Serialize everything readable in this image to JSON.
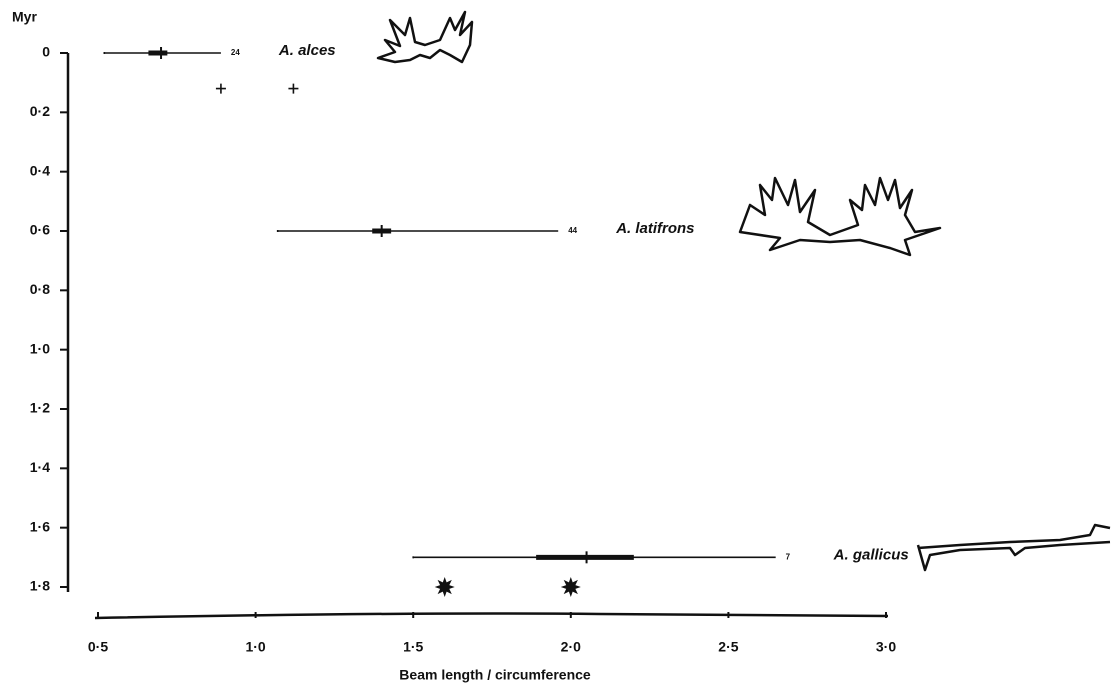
{
  "chart_data": {
    "type": "range",
    "ylabel": "Myr",
    "xlabel": "Beam length / circumference",
    "xlim": [
      0.5,
      3.0
    ],
    "xticks": [
      {
        "value": 0.5,
        "label": "0·5"
      },
      {
        "value": 1.0,
        "label": "1·0"
      },
      {
        "value": 1.5,
        "label": "1·5"
      },
      {
        "value": 2.0,
        "label": "2·0"
      },
      {
        "value": 2.5,
        "label": "2·5"
      },
      {
        "value": 3.0,
        "label": "3·0"
      }
    ],
    "ylim": [
      0,
      1.8
    ],
    "yticks": [
      0,
      {
        "value": 0.2,
        "label": "0·2"
      },
      {
        "value": 0.4,
        "label": "0·4"
      },
      {
        "value": 0.6,
        "label": "0·6"
      },
      {
        "value": 0.8,
        "label": "0·8"
      },
      {
        "value": 1.0,
        "label": "1·0"
      },
      {
        "value": 1.2,
        "label": "1·2"
      },
      {
        "value": 1.4,
        "label": "1·4"
      },
      {
        "value": 1.6,
        "label": "1·6"
      },
      {
        "value": 1.8,
        "label": "1·8"
      }
    ],
    "y_inverted": true,
    "color": "#111111",
    "series": [
      {
        "name": "A. alces",
        "y": 0,
        "min": 0.52,
        "max": 0.89,
        "mean": 0.7,
        "sd_low": 0.66,
        "sd_high": 0.72,
        "n": 24
      },
      {
        "name": "A. latifrons",
        "y": 0.6,
        "min": 1.07,
        "max": 1.96,
        "mean": 1.4,
        "sd_low": 1.37,
        "sd_high": 1.43,
        "n": 44
      },
      {
        "name": "A. gallicus",
        "y": 1.7,
        "min": 1.5,
        "max": 2.65,
        "mean": 2.05,
        "sd_low": 1.89,
        "sd_high": 2.2,
        "n": 7
      }
    ],
    "crosses": {
      "x": [
        0.89,
        1.12
      ],
      "y": [
        0.12,
        0.12
      ]
    },
    "stars": {
      "x": [
        1.6,
        2.0
      ],
      "y": [
        1.8,
        1.8
      ]
    }
  }
}
